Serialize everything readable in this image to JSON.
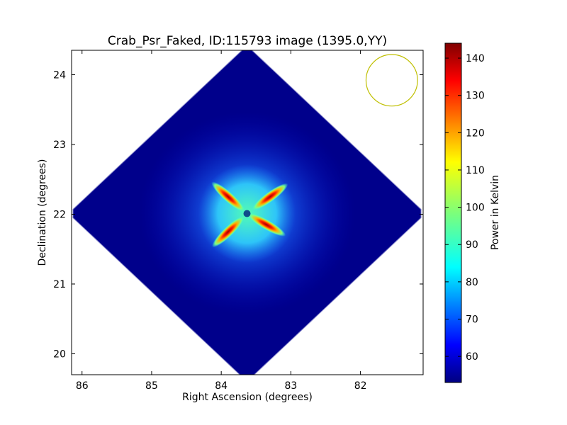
{
  "chart_data": {
    "type": "heatmap",
    "title": "Crab_Psr_Faked, ID:115793 image (1395.0,YY)",
    "xlabel": "Right Ascension (degrees)",
    "ylabel": "Declination (degrees)",
    "xlim": [
      86.15,
      81.1
    ],
    "ylim": [
      19.7,
      24.35
    ],
    "xticks": [
      86,
      85,
      84,
      83,
      82
    ],
    "yticks": [
      20,
      21,
      22,
      23,
      24
    ],
    "colorbar": {
      "label": "Power in Kelvin",
      "range": [
        53,
        144
      ],
      "ticks": [
        60,
        70,
        80,
        90,
        100,
        110,
        120,
        130,
        140
      ]
    },
    "map_center": {
      "ra": 83.63,
      "dec": 22.01
    },
    "map_extent_deg": {
      "ra_half_width": 2.5,
      "dec_half_height": 2.35
    },
    "background_value": 55,
    "features": [
      {
        "name": "hot-lobe-nw",
        "ra": 83.9,
        "dec": 22.25,
        "value": 140
      },
      {
        "name": "hot-lobe-ne",
        "ra": 83.3,
        "dec": 22.25,
        "value": 132
      },
      {
        "name": "hot-lobe-sw",
        "ra": 83.9,
        "dec": 21.75,
        "value": 130
      },
      {
        "name": "hot-lobe-se",
        "ra": 83.35,
        "dec": 21.85,
        "value": 138
      },
      {
        "name": "central-plateau",
        "ra": 83.6,
        "dec": 22.0,
        "value": 90
      }
    ],
    "beam": {
      "ra": 81.55,
      "dec": 23.92,
      "radius_deg": 0.37,
      "color": "#bfbf00"
    }
  }
}
